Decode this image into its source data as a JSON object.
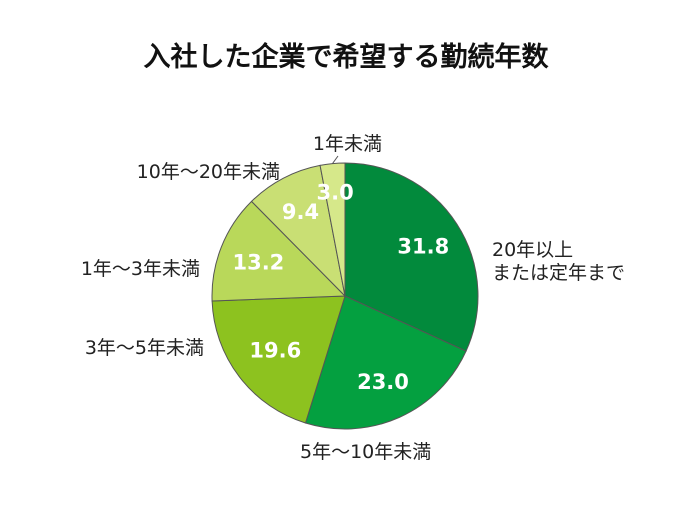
{
  "chart_data": {
    "type": "pie",
    "title": "入社した企業で希望する勤続年数",
    "start": "12 o'clock",
    "direction": "clockwise",
    "slices": [
      {
        "label_lines": [
          "20年以上",
          "または定年まで"
        ],
        "value": 31.8,
        "value_label": "31.8",
        "color": "#028a3c"
      },
      {
        "label_lines": [
          "5年～10年未満"
        ],
        "value": 23.0,
        "value_label": "23.0",
        "color": "#04a040"
      },
      {
        "label_lines": [
          "3年～5年未満"
        ],
        "value": 19.6,
        "value_label": "19.6",
        "color": "#8dc21f"
      },
      {
        "label_lines": [
          "1年～3年未満"
        ],
        "value": 13.2,
        "value_label": "13.2",
        "color": "#b9d85a"
      },
      {
        "label_lines": [
          "10年～20年未満"
        ],
        "value": 9.4,
        "value_label": "9.4",
        "color": "#c9df74"
      },
      {
        "label_lines": [
          "1年未満"
        ],
        "value": 3.0,
        "value_label": "3.0",
        "color": "#d6e88a"
      }
    ]
  }
}
